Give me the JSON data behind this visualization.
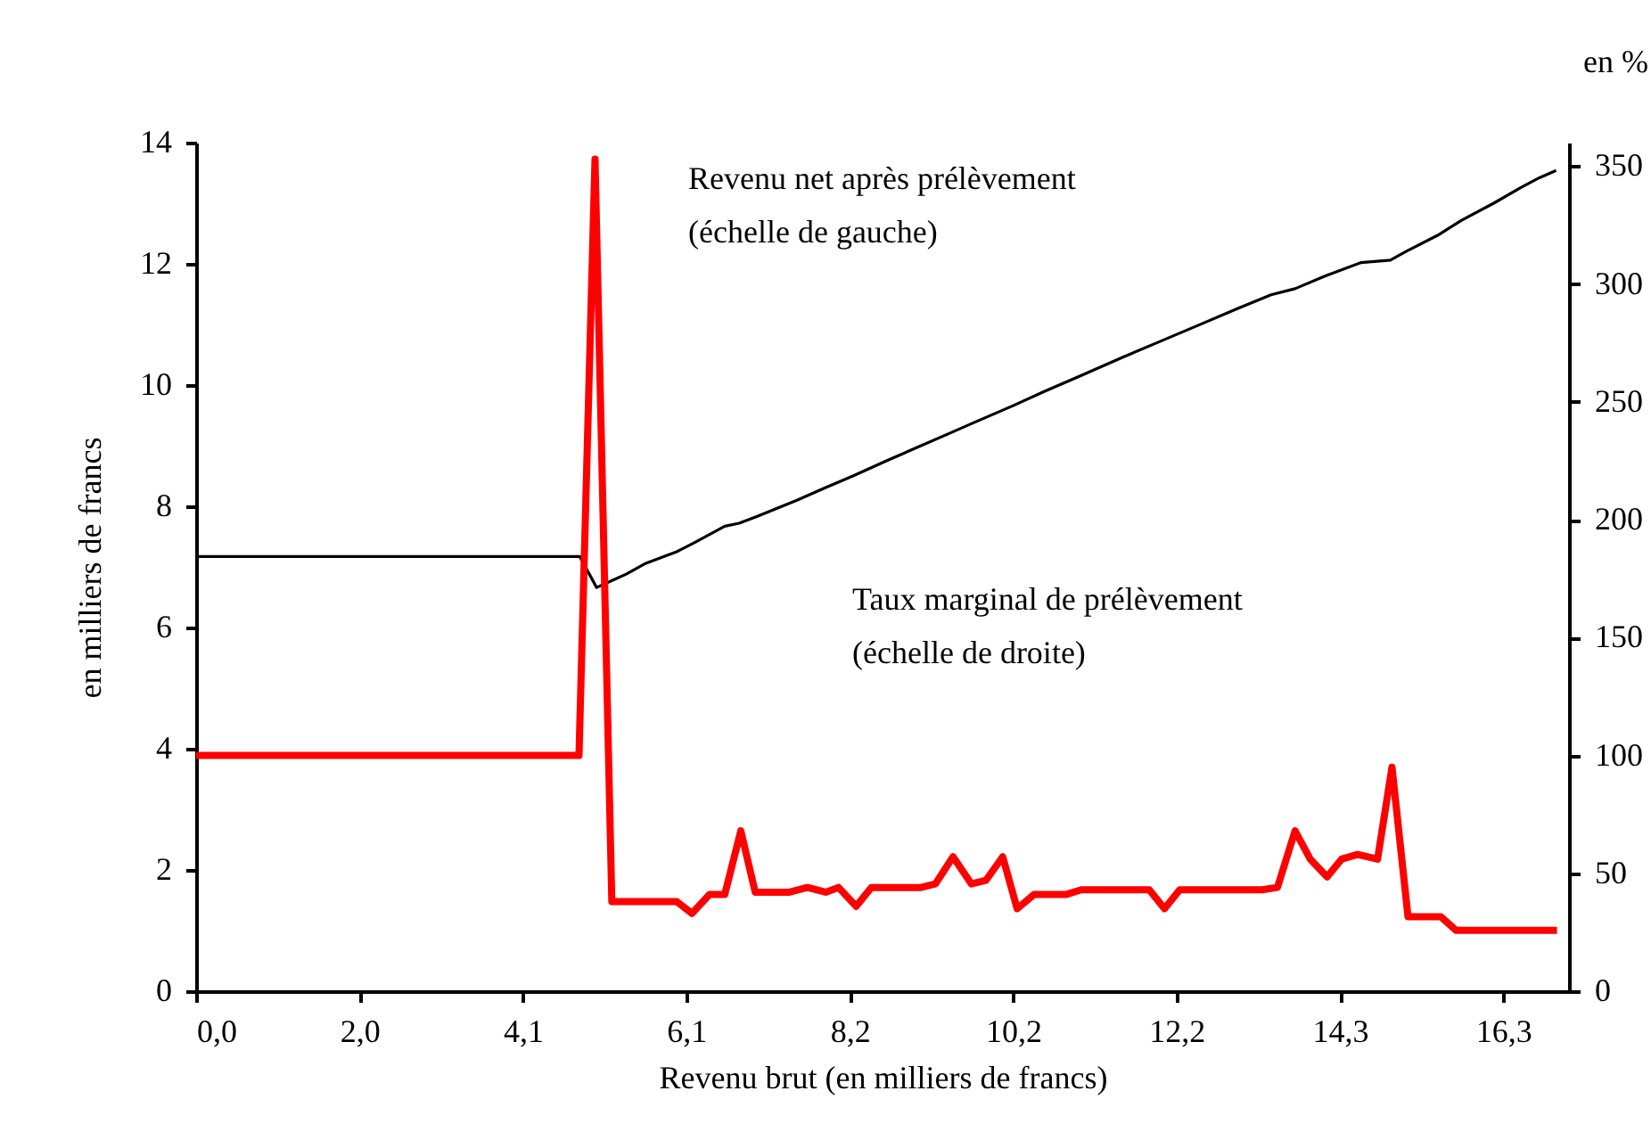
{
  "chart_data": {
    "type": "line",
    "xlabel": "Revenu brut (en milliers de francs)",
    "ylabel": "en milliers de francs",
    "y2label": "en %",
    "annotations": [
      "Revenu net après prélèvement\n(échelle de gauche)",
      "Taux marginal de prélèvement\n(échelle de droite)"
    ],
    "xlim": [
      0,
      17.14
    ],
    "xticks": [
      {
        "value": 0,
        "label": "0,0"
      },
      {
        "value": 2.04,
        "label": "2,0"
      },
      {
        "value": 4.08,
        "label": "4,1"
      },
      {
        "value": 6.12,
        "label": "6,1"
      },
      {
        "value": 8.16,
        "label": "8,2"
      },
      {
        "value": 10.2,
        "label": "10,2"
      },
      {
        "value": 12.24,
        "label": "12,2"
      },
      {
        "value": 14.28,
        "label": "14,3"
      },
      {
        "value": 16.32,
        "label": "16,3"
      }
    ],
    "ylim": [
      0,
      14
    ],
    "yticks": [
      0,
      2,
      4,
      6,
      8,
      10,
      12,
      14
    ],
    "y2lim": [
      0,
      360
    ],
    "y2ticks": [
      0,
      50,
      100,
      150,
      200,
      250,
      300,
      350
    ],
    "grid": false,
    "series": [
      {
        "color": "#000000",
        "x": [
          0,
          4.79,
          5.0,
          5.2,
          5.37,
          5.6,
          6.0,
          6.22,
          6.6,
          6.78,
          7.0,
          7.5,
          7.86,
          8.2,
          8.6,
          9.0,
          9.4,
          9.71,
          10.2,
          10.6,
          11.0,
          11.57,
          12.0,
          12.5,
          13.0,
          13.42,
          13.72,
          14.1,
          14.54,
          14.91,
          15.1,
          15.5,
          15.8,
          16.2,
          16.54,
          16.77,
          16.98
        ],
        "values": [
          7.17,
          7.17,
          6.66,
          6.78,
          6.88,
          7.05,
          7.25,
          7.4,
          7.67,
          7.72,
          7.83,
          8.1,
          8.31,
          8.5,
          8.74,
          8.97,
          9.2,
          9.38,
          9.66,
          9.9,
          10.13,
          10.46,
          10.7,
          10.98,
          11.26,
          11.49,
          11.59,
          11.8,
          12.02,
          12.06,
          12.2,
          12.47,
          12.72,
          13.0,
          13.26,
          13.42,
          13.54
        ]
      },
      {
        "color": "#ff0000",
        "axis": "y2",
        "x": [
          0,
          4.78,
          4.98,
          5.19,
          6.0,
          6.19,
          6.41,
          6.6,
          6.8,
          6.98,
          7.41,
          7.63,
          7.86,
          8.02,
          8.24,
          8.43,
          9.05,
          9.23,
          9.45,
          9.68,
          9.86,
          10.07,
          10.25,
          10.46,
          10.86,
          11.05,
          11.9,
          12.09,
          12.28,
          13.31,
          13.5,
          13.72,
          13.91,
          14.12,
          14.3,
          14.5,
          14.75,
          14.93,
          15.13,
          15.54,
          15.73,
          16.99
        ],
        "values": [
          100,
          100,
          353,
          38,
          38,
          33,
          41,
          41,
          68,
          42,
          42,
          44,
          42,
          44,
          36,
          44,
          44,
          45.5,
          57,
          45.5,
          47,
          57,
          35,
          41,
          41,
          43,
          43,
          35,
          43,
          43,
          44,
          68,
          56,
          48.5,
          56,
          58,
          56,
          95,
          31.6,
          31.6,
          25.8,
          25.8
        ]
      }
    ]
  }
}
